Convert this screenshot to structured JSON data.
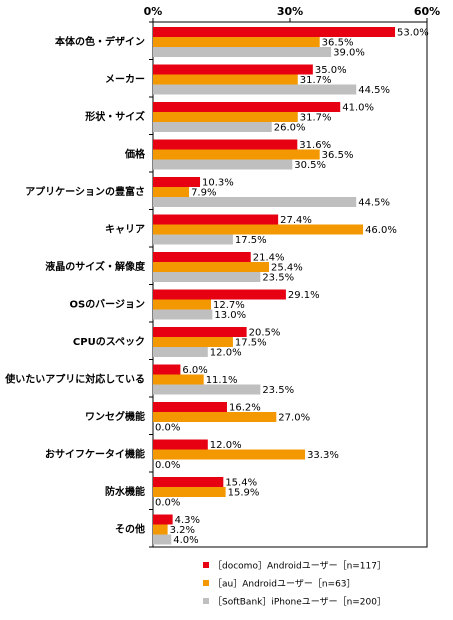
{
  "chart_data": {
    "type": "bar",
    "orientation": "horizontal",
    "xlim": [
      0,
      60
    ],
    "xticks": [
      "0%",
      "30%",
      "60%"
    ],
    "categories": [
      "本体の色・デザイン",
      "メーカー",
      "形状・サイズ",
      "価格",
      "アプリケーションの豊富さ",
      "キャリア",
      "液晶のサイズ・解像度",
      "OSのバージョン",
      "CPUのスペック",
      "使いたいアプリに対応している",
      "ワンセグ機能",
      "おサイフケータイ機能",
      "防水機能",
      "その他"
    ],
    "series": [
      {
        "name": "［docomo］Androidユーザー［n=117］",
        "color": "#e60012",
        "values": [
          53.0,
          35.0,
          41.0,
          31.6,
          10.3,
          27.4,
          21.4,
          29.1,
          20.5,
          6.0,
          16.2,
          12.0,
          15.4,
          4.3
        ],
        "labels": [
          "53.0%",
          "35.0%",
          "41.0%",
          "31.6%",
          "10.3%",
          "27.4%",
          "21.4%",
          "29.1%",
          "20.5%",
          "6.0%",
          "16.2%",
          "12.0%",
          "15.4%",
          "4.3%"
        ]
      },
      {
        "name": "［au］Androidユーザー［n=63］",
        "color": "#f39800",
        "values": [
          36.5,
          31.7,
          31.7,
          36.5,
          7.9,
          46.0,
          25.4,
          12.7,
          17.5,
          11.1,
          27.0,
          33.3,
          15.9,
          3.2
        ],
        "labels": [
          "36.5%",
          "31.7%",
          "31.7%",
          "36.5%",
          "7.9%",
          "46.0%",
          "25.4%",
          "12.7%",
          "17.5%",
          "11.1%",
          "27.0%",
          "33.3%",
          "15.9%",
          "3.2%"
        ]
      },
      {
        "name": "［SoftBank］iPhoneユーザー［n=200］",
        "color": "#bfbfbf",
        "values": [
          39.0,
          44.5,
          26.0,
          30.5,
          44.5,
          17.5,
          23.5,
          13.0,
          12.0,
          23.5,
          0.0,
          0.0,
          0.0,
          4.0
        ],
        "labels": [
          "39.0%",
          "44.5%",
          "26.0%",
          "30.5%",
          "44.5%",
          "17.5%",
          "23.5%",
          "13.0%",
          "12.0%",
          "23.5%",
          "0.0%",
          "0.0%",
          "0.0%",
          "4.0%"
        ]
      }
    ],
    "legend_position": "bottom-right",
    "grid": false
  }
}
